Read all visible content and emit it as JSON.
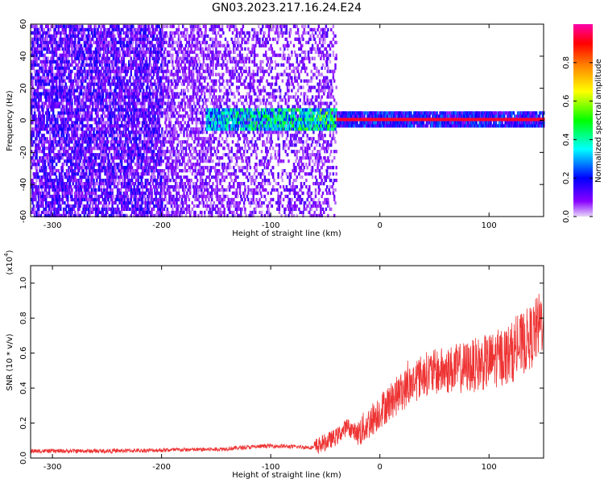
{
  "title": "GN03.2023.217.16.24.E24",
  "chart_data": [
    {
      "type": "heatmap",
      "xlabel": "Height of straight line (km)",
      "ylabel": "Frequency (Hz)",
      "xlim": [
        -320,
        150
      ],
      "ylim": [
        -60,
        60
      ],
      "x_ticks": [
        -300,
        -200,
        -100,
        0,
        100
      ],
      "y_ticks": [
        -60,
        -40,
        -20,
        0,
        20,
        40,
        60
      ],
      "colorbar": {
        "label": "Normalized spectral amplitude",
        "range": [
          0,
          1
        ],
        "ticks": [
          0.0,
          0.2,
          0.4,
          0.6,
          0.8
        ],
        "colormap": [
          "#e8d8f8",
          "#8800ff",
          "#0000ff",
          "#00ffff",
          "#00ff00",
          "#ffff00",
          "#ff8800",
          "#ff0000",
          "#ff00aa"
        ]
      },
      "description_regions": [
        {
          "x_range": [
            -320,
            -200
          ],
          "freq_spread": [
            -60,
            60
          ],
          "amplitude": 0.1
        },
        {
          "x_range": [
            -200,
            -40
          ],
          "freq_spread": [
            -60,
            60
          ],
          "amplitude": 0.05
        },
        {
          "x_range": [
            -160,
            -40
          ],
          "band_center": 0,
          "band_halfwidth": 8,
          "amplitude": 0.45
        },
        {
          "x_range": [
            -40,
            150
          ],
          "band_center": 0,
          "band_halfwidth": 3,
          "amplitude": 0.95
        }
      ]
    },
    {
      "type": "line",
      "xlabel": "Height of straight line (km)",
      "ylabel": "SNR (10 * v/v)",
      "y_multiplier": "(x10^4)",
      "y_multiplier_base": "(x10",
      "y_multiplier_exp": "4",
      "y_multiplier_close": ")",
      "xlim": [
        -320,
        150
      ],
      "ylim": [
        0,
        1.1
      ],
      "x_ticks": [
        -300,
        -200,
        -100,
        0,
        100
      ],
      "y_ticks": [
        0.0,
        0.2,
        0.4,
        0.6,
        0.8,
        1.0
      ],
      "series": [
        {
          "color": "#ee3333",
          "x": [
            -320,
            -250,
            -150,
            -100,
            -60,
            -40,
            -30,
            -20,
            -10,
            0,
            20,
            40,
            60,
            80,
            100,
            120,
            140,
            150
          ],
          "y": [
            0.04,
            0.04,
            0.05,
            0.07,
            0.06,
            0.12,
            0.18,
            0.14,
            0.2,
            0.27,
            0.38,
            0.48,
            0.5,
            0.52,
            0.55,
            0.6,
            0.7,
            0.8
          ]
        }
      ]
    }
  ]
}
